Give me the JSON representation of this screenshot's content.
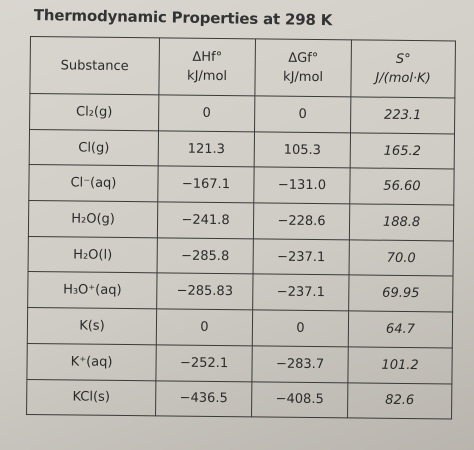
{
  "title": "Thermodynamic Properties at 298 K",
  "table": {
    "header": [
      {
        "symbol": "Substance"
      },
      {
        "symbol": "ΔHf°",
        "unit": "kJ/mol"
      },
      {
        "symbol": "ΔGf°",
        "unit": "kJ/mol"
      },
      {
        "symbol": "S°",
        "unit": "J/(mol·K)"
      }
    ],
    "rows": [
      [
        "Cl₂(g)",
        "0",
        "0",
        "223.1"
      ],
      [
        "Cl(g)",
        "121.3",
        "105.3",
        "165.2"
      ],
      [
        "Cl⁻(aq)",
        "−167.1",
        "−131.0",
        "56.60"
      ],
      [
        "H₂O(g)",
        "−241.8",
        "−228.6",
        "188.8"
      ],
      [
        "H₂O(l)",
        "−285.8",
        "−237.1",
        "70.0"
      ],
      [
        "H₃O⁺(aq)",
        "−285.83",
        "−237.1",
        "69.95"
      ],
      [
        "K(s)",
        "0",
        "0",
        "64.7"
      ],
      [
        "K⁺(aq)",
        "−252.1",
        "−283.7",
        "101.2"
      ],
      [
        "KCl(s)",
        "−436.5",
        "−408.5",
        "82.6"
      ]
    ]
  }
}
